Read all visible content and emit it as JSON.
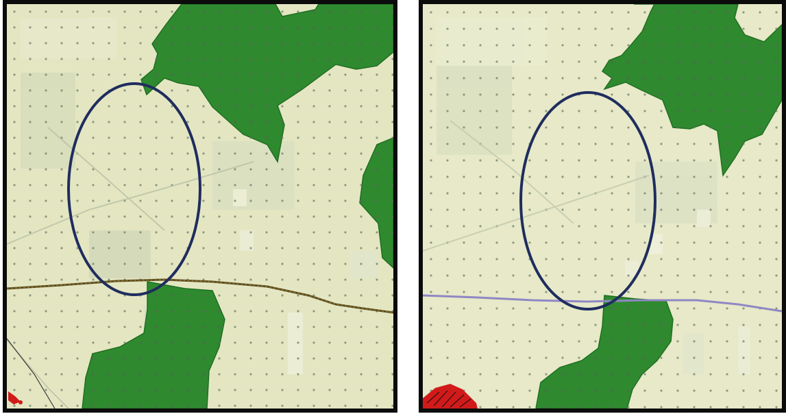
{
  "figure": {
    "panels": [
      {
        "id": "left",
        "map": "map-panel-left",
        "road_color": "#5a4a1c",
        "highlight": "ellipse"
      },
      {
        "id": "right",
        "map": "map-panel-right",
        "road_color": "#8f87c4",
        "highlight": "ellipse"
      }
    ],
    "colors": {
      "background": "#e6e8c4",
      "forest": "#2f8a2f",
      "forest_dark": "#1f6e22",
      "grid_dots": "#6f7f6a",
      "highlight_ring": "#1f2d5e",
      "frame": "#0b0b0b",
      "marker_red": "#d11b1b"
    }
  }
}
